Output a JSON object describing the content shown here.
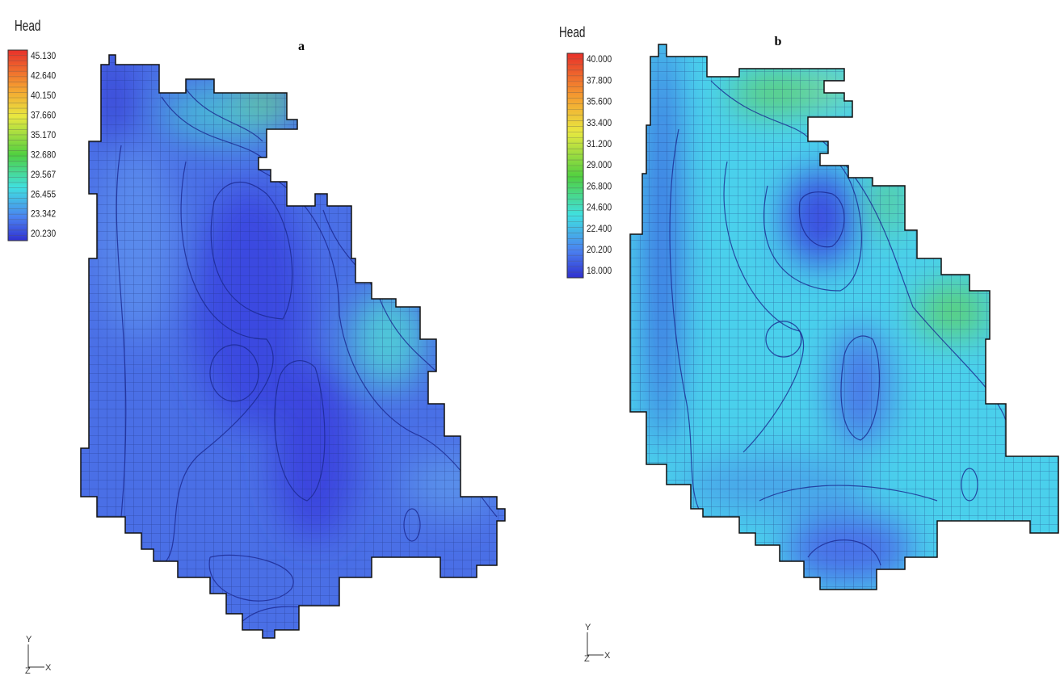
{
  "panels": [
    {
      "label": "a",
      "legend": {
        "title": "Head",
        "values": [
          "45.130",
          "42.640",
          "40.150",
          "37.660",
          "35.170",
          "32.680",
          "29.567",
          "26.455",
          "23.342",
          "20.230"
        ]
      },
      "axes": {
        "y": "Y",
        "z": "Z",
        "x": "X"
      }
    },
    {
      "label": "b",
      "legend": {
        "title": "Head",
        "values": [
          "40.000",
          "37.800",
          "35.600",
          "33.400",
          "31.200",
          "29.000",
          "26.800",
          "24.600",
          "22.400",
          "20.200",
          "18.000"
        ]
      },
      "axes": {
        "y": "Y",
        "z": "Z",
        "x": "X"
      }
    }
  ]
}
